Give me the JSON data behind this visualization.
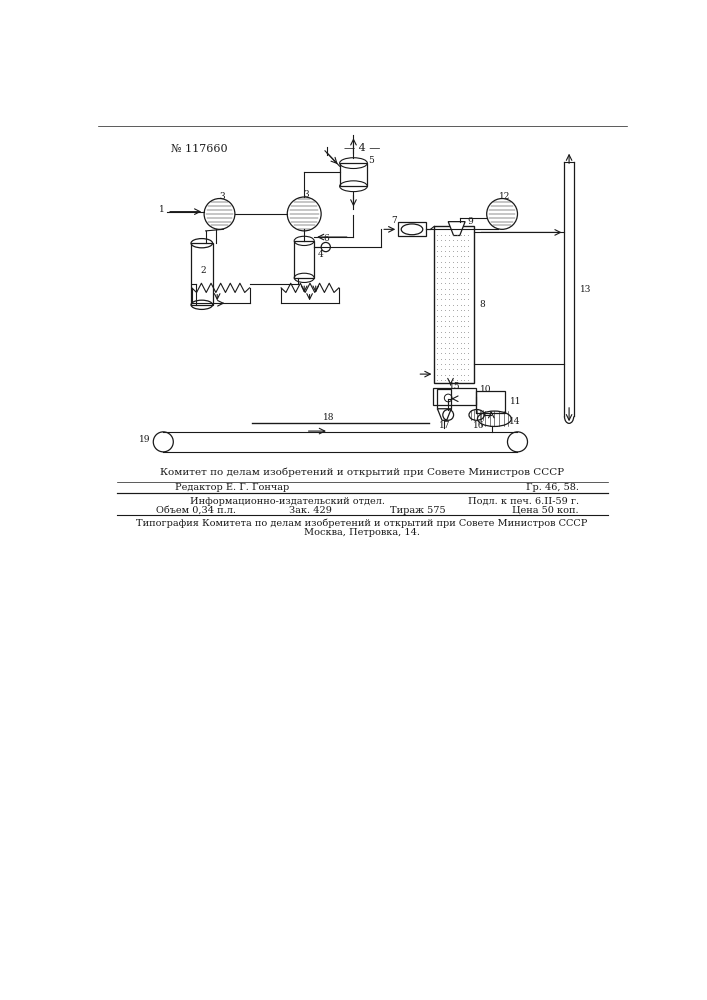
{
  "page_number": "— 4 —",
  "patent_number": "№ 117660",
  "background_color": "#ffffff",
  "line_color": "#1a1a1a",
  "footer_line1": "Комитет по делам изобретений и открытий при Совете Министров СССР",
  "footer_editor": "Редактор Е. Г. Гончар",
  "footer_gr": "Гр. 46, 58.",
  "footer_info": "Информационно-издательский отдел.",
  "footer_podl": "Подл. к печ. 6.II-59 г.",
  "footer_obem": "Объем 0,34 п.л.",
  "footer_zak": "Зак. 429",
  "footer_tir": "Тираж 575",
  "footer_cena": "Цена 50 коп.",
  "footer_tip1": "Типография Комитета по делам изобретений и открытий при Совете Министров СССР",
  "footer_tip2": "Москва, Петровка, 14."
}
